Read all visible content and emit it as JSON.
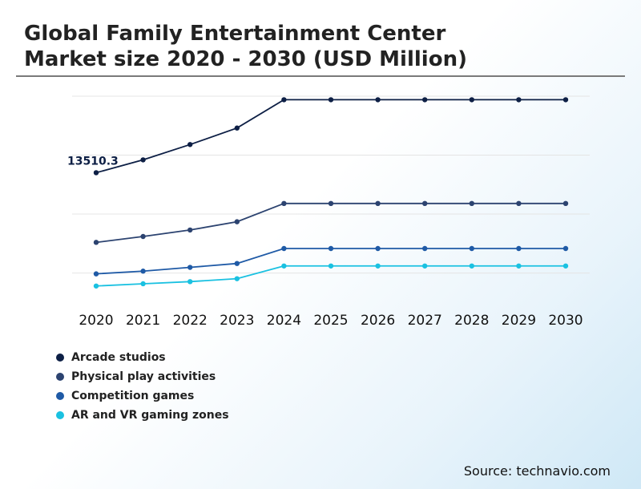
{
  "header": {
    "title_line1": "Global Family Entertainment Center",
    "title_line2": "Market size 2020 - 2030 (USD Million)"
  },
  "source": "Source: technavio.com",
  "chart_data": {
    "type": "line",
    "x": [
      "2020",
      "2021",
      "2022",
      "2023",
      "2024",
      "2025",
      "2026",
      "2027",
      "2028",
      "2029",
      "2030"
    ],
    "series": [
      {
        "name": "Arcade studios",
        "color": "#0d1f45",
        "values": [
          13510.3,
          14600,
          15900,
          17300,
          19700,
          19700,
          19700,
          19700,
          19700,
          19700,
          19700
        ]
      },
      {
        "name": "Physical play activities",
        "color": "#2c4370",
        "values": [
          7600,
          8100,
          8650,
          9350,
          10900,
          10900,
          10900,
          10900,
          10900,
          10900,
          10900
        ]
      },
      {
        "name": "Competition games",
        "color": "#1f5aa6",
        "values": [
          4930,
          5160,
          5480,
          5810,
          7080,
          7080,
          7080,
          7080,
          7080,
          7080,
          7080
        ]
      },
      {
        "name": "AR and VR gaming zones",
        "color": "#1ac1e1",
        "values": [
          3900,
          4090,
          4270,
          4520,
          5600,
          5600,
          5600,
          5600,
          5600,
          5600,
          5600
        ]
      }
    ],
    "annotations": [
      {
        "series": 0,
        "index": 0,
        "text": "13510.3"
      }
    ],
    "ylim": [
      3000,
      20000
    ],
    "gridlines": [
      5000,
      10000,
      15000,
      20000
    ],
    "grid": true,
    "legend_position": "bottom-left"
  }
}
